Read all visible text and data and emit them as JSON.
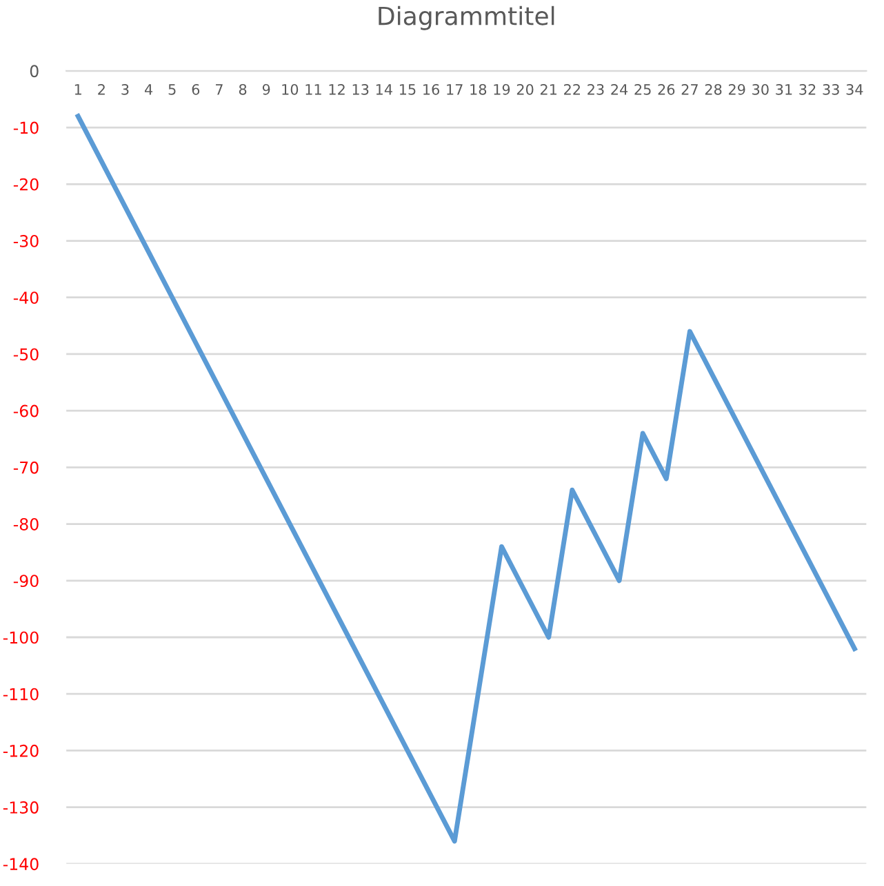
{
  "chart_data": {
    "type": "line",
    "title": "Diagrammtitel",
    "categories": [
      "1",
      "2",
      "3",
      "4",
      "5",
      "6",
      "7",
      "8",
      "9",
      "10",
      "11",
      "12",
      "13",
      "14",
      "15",
      "16",
      "17",
      "18",
      "19",
      "20",
      "21",
      "22",
      "23",
      "24",
      "25",
      "26",
      "27",
      "28",
      "29",
      "30",
      "31",
      "32",
      "33",
      "34"
    ],
    "series": [
      {
        "color": "#5b9bd5",
        "values": [
          -8,
          -16,
          -24,
          -32,
          -40,
          -48,
          -56,
          -64,
          -72,
          -80,
          -88,
          -96,
          -104,
          -112,
          -120,
          -128,
          -136,
          -110,
          -84,
          -92,
          -100,
          -74,
          -82,
          -90,
          -64,
          -72,
          -46,
          -54,
          -62,
          -70,
          -78,
          -86,
          -94,
          -102
        ]
      }
    ],
    "ylim": [
      -140,
      0
    ],
    "yticks": [
      -140,
      -130,
      -120,
      -110,
      -100,
      -90,
      -80,
      -70,
      -60,
      -50,
      -40,
      -30,
      -20,
      -10,
      0
    ],
    "grid": "y",
    "marker": "none",
    "line_style": "solid"
  }
}
